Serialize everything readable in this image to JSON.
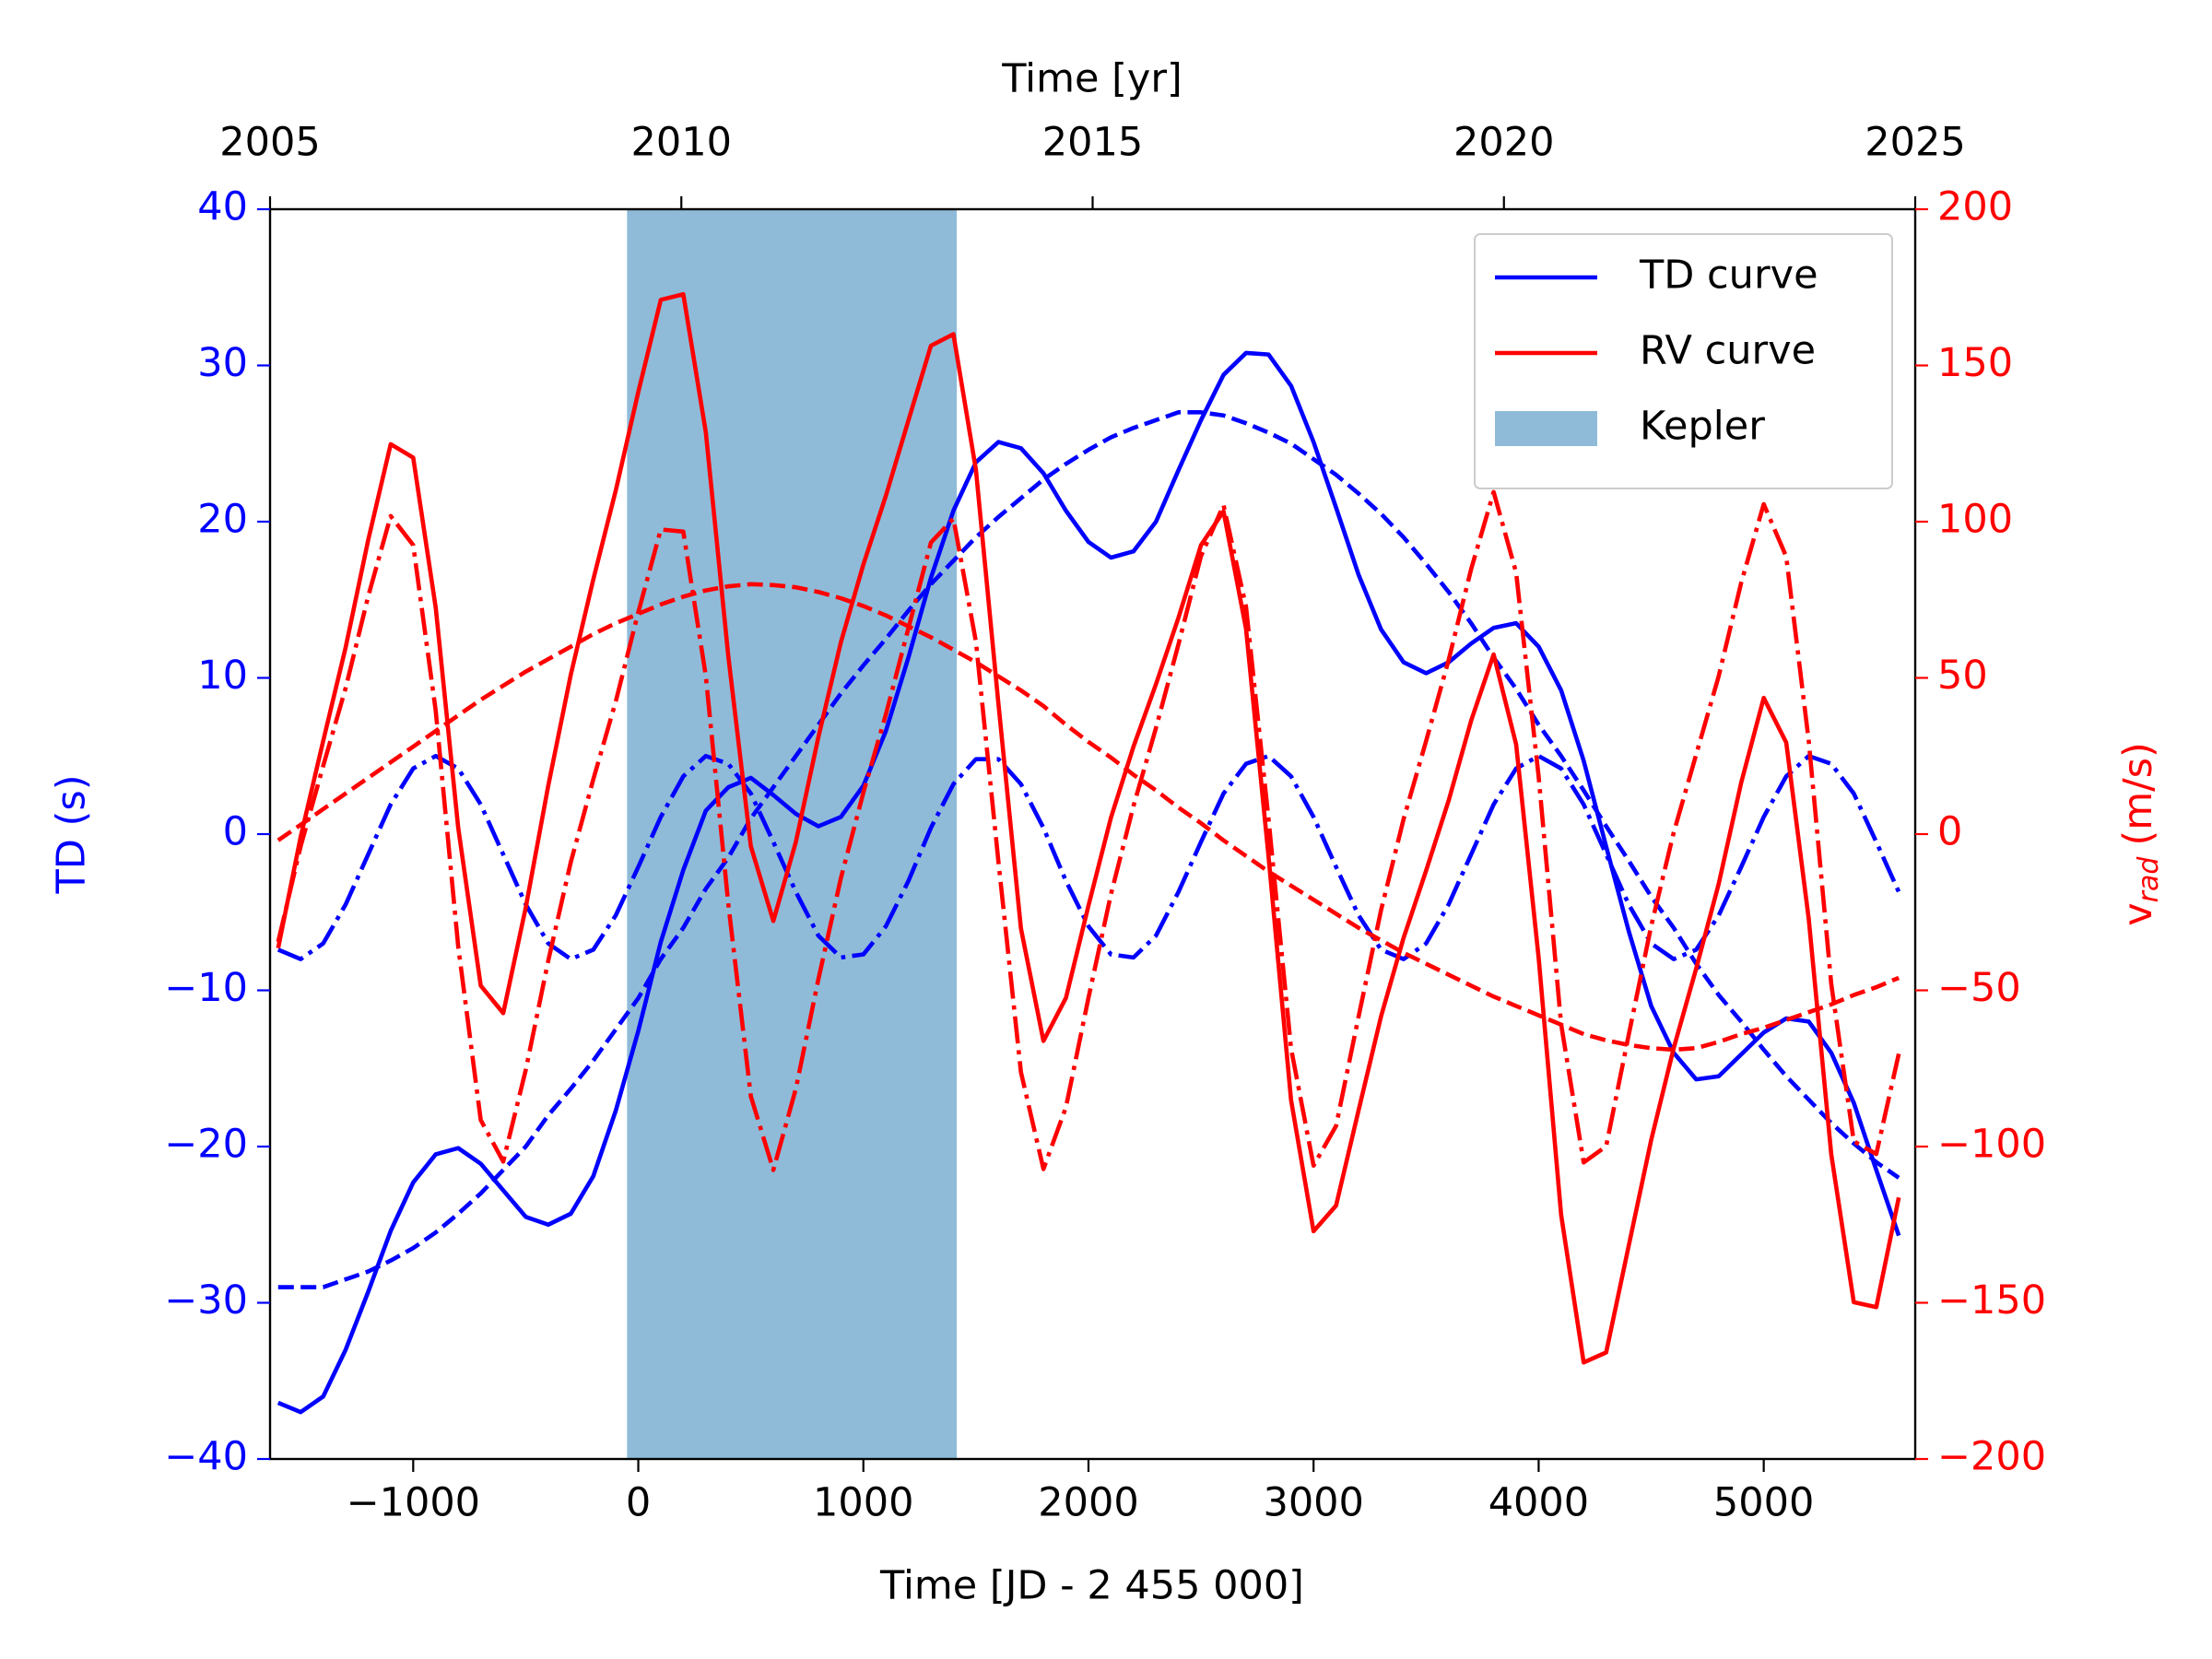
{
  "chart_data": {
    "type": "line",
    "xlabel": "Time [JD - 2 455 000]",
    "x2label": "Time [yr]",
    "ylabel": "TD (s)",
    "y2label": {
      "symbol": "v",
      "subscript": "rad",
      "unit": "(m/s)"
    },
    "xlim": [
      -1636,
      5673
    ],
    "xticks": [
      {
        "value": -1000,
        "label": "−1000"
      },
      0,
      1000,
      2000,
      3000,
      4000,
      5000
    ],
    "x2lim": [
      2005,
      2025
    ],
    "x2ticks": [
      2005,
      2010,
      2015,
      2020,
      2025
    ],
    "ylim": [
      -40,
      40
    ],
    "yticks": [
      {
        "value": -40,
        "label": "−40"
      },
      {
        "value": -30,
        "label": "−30"
      },
      {
        "value": -20,
        "label": "−20"
      },
      {
        "value": -10,
        "label": "−10"
      },
      0,
      10,
      20,
      30,
      40
    ],
    "y2lim": [
      -200,
      200
    ],
    "y2ticks": [
      {
        "value": -200,
        "label": "−200"
      },
      {
        "value": -150,
        "label": "−150"
      },
      {
        "value": -100,
        "label": "−100"
      },
      {
        "value": -50,
        "label": "−50"
      },
      0,
      50,
      100,
      150,
      200
    ],
    "ycolor": "#0000ff",
    "y2color": "#ff0000",
    "legend": "upper right",
    "span": {
      "name": "Kepler",
      "xmin": -50,
      "xmax": 1415,
      "color": "#1f77b4",
      "alpha": 0.5
    },
    "x": [
      -1600,
      -1500,
      -1400,
      -1300,
      -1200,
      -1100,
      -1000,
      -900,
      -800,
      -700,
      -600,
      -500,
      -400,
      -300,
      -200,
      -100,
      0,
      100,
      200,
      300,
      400,
      500,
      600,
      700,
      800,
      900,
      1000,
      1100,
      1200,
      1300,
      1400,
      1500,
      1600,
      1700,
      1800,
      1900,
      2000,
      2100,
      2200,
      2300,
      2400,
      2500,
      2600,
      2700,
      2800,
      2900,
      3000,
      3100,
      3200,
      3300,
      3400,
      3500,
      3600,
      3700,
      3800,
      3900,
      4000,
      4100,
      4200,
      4300,
      4400,
      4500,
      4600,
      4700,
      4800,
      4900,
      5000,
      5100,
      5200,
      5300,
      5400,
      5500,
      5600
    ],
    "series": [
      {
        "name": "TD curve",
        "color": "#0000ff",
        "linestyle": "solid",
        "axis": "y",
        "values": [
          -36.4,
          -37.0,
          -36.0,
          -33.0,
          -29.3,
          -25.4,
          -22.3,
          -20.5,
          -20.1,
          -21.1,
          -22.8,
          -24.5,
          -25.0,
          -24.3,
          -21.9,
          -17.7,
          -12.6,
          -6.9,
          -2.3,
          1.5,
          3.0,
          3.6,
          2.5,
          1.3,
          0.5,
          1.1,
          3.1,
          6.6,
          11.3,
          16.4,
          20.7,
          23.8,
          25.1,
          24.7,
          23.1,
          20.7,
          18.7,
          17.7,
          18.1,
          20.0,
          23.3,
          26.5,
          29.4,
          30.8,
          30.7,
          28.7,
          25.1,
          20.9,
          16.6,
          13.1,
          11.0,
          10.3,
          11.0,
          12.2,
          13.2,
          13.5,
          12.0,
          9.2,
          4.7,
          -0.8,
          -6.2,
          -11.0,
          -14.0,
          -15.7,
          -15.5,
          -14.1,
          -12.7,
          -11.8,
          -12.0,
          -14.0,
          -17.2,
          -21.5,
          -25.7
        ]
      },
      {
        "color": "#0000ff",
        "linestyle": "dashed",
        "axis": "y",
        "values": [
          -29,
          -29,
          -29,
          -28.5,
          -28,
          -27.3,
          -26.5,
          -25.5,
          -24.3,
          -23,
          -21.5,
          -20,
          -18,
          -16.3,
          -14.5,
          -12.5,
          -10.5,
          -8,
          -6,
          -3.5,
          -1.5,
          1,
          3,
          5,
          7,
          9,
          10.8,
          12.5,
          14.3,
          16,
          17.5,
          19,
          20.3,
          21.5,
          22.7,
          23.7,
          24.6,
          25.4,
          26,
          26.5,
          27,
          27,
          26.8,
          26.3,
          25.7,
          25,
          24,
          23,
          21.8,
          20.5,
          19,
          17.3,
          15.5,
          13.5,
          11.3,
          9.3,
          7,
          5,
          2.8,
          0.5,
          -1.7,
          -4,
          -6,
          -8.3,
          -10.3,
          -12,
          -13.8,
          -15.5,
          -17,
          -18.5,
          -19.8,
          -21,
          -22
        ]
      },
      {
        "color": "#0000ff",
        "linestyle": "dashdot",
        "axis": "y",
        "values": [
          -7.4,
          -8.0,
          -7.0,
          -4.5,
          -1.3,
          1.9,
          4.2,
          5.0,
          4.2,
          1.9,
          -1.3,
          -4.5,
          -7.0,
          -8.0,
          -7.4,
          -5.2,
          -2.1,
          1.1,
          3.7,
          5.0,
          4.5,
          2.6,
          -0.5,
          -3.7,
          -6.5,
          -7.9,
          -7.7,
          -5.9,
          -3.0,
          0.4,
          3.2,
          4.8,
          4.8,
          3.2,
          0.4,
          -3.0,
          -5.9,
          -7.7,
          -7.9,
          -6.5,
          -3.7,
          -0.5,
          2.6,
          4.5,
          5.0,
          3.7,
          1.1,
          -2.1,
          -5.2,
          -7.4,
          -8.0,
          -7.0,
          -4.5,
          -1.3,
          1.9,
          4.2,
          5.0,
          4.2,
          1.9,
          -1.3,
          -4.5,
          -7.0,
          -8.0,
          -7.4,
          -5.2,
          -2.1,
          1.1,
          3.7,
          5.0,
          4.5,
          2.6,
          -0.5,
          -3.7
        ]
      },
      {
        "name": "RV curve",
        "color": "#ff0000",
        "linestyle": "solid",
        "axis": "y2",
        "values": [
          -36.5,
          -0.9,
          29.8,
          59.8,
          94.1,
          124.8,
          120.5,
          72.5,
          2,
          -48.5,
          -57.3,
          -23.5,
          15.5,
          51,
          81.5,
          110,
          141.5,
          171,
          172.8,
          128.6,
          56.9,
          -3.9,
          -27.8,
          -2.5,
          31,
          61.4,
          86.3,
          108.3,
          132.4,
          156.3,
          160,
          116.6,
          41.7,
          -30.2,
          -66.2,
          -52.4,
          -22.9,
          5.3,
          28,
          48,
          69.3,
          92.5,
          103.3,
          65.7,
          -7.2,
          -85.1,
          -127.1,
          -118.9,
          -88.4,
          -58.3,
          -33.2,
          -11.7,
          10.7,
          36.3,
          57.5,
          28.7,
          -39.6,
          -121.9,
          -169.1,
          -165.9,
          -131.8,
          -97.9,
          -68.5,
          -43,
          -15.9,
          16.5,
          43.6,
          29.3,
          -27.2,
          -102.5,
          -149.8,
          -151.4,
          -116.3
        ]
      },
      {
        "color": "#ff0000",
        "linestyle": "dashed",
        "axis": "y2",
        "values": [
          -2,
          3,
          8,
          13,
          18,
          23,
          28,
          33,
          38,
          43,
          47.5,
          52,
          56,
          60,
          64,
          67.5,
          70.5,
          73.5,
          76,
          78,
          79.3,
          80,
          79.7,
          79,
          77.5,
          75.5,
          73,
          70,
          66.5,
          63,
          59,
          55,
          50.5,
          46,
          41,
          35,
          29.5,
          24.5,
          19,
          14,
          8.5,
          3.5,
          -2,
          -7,
          -12,
          -16.5,
          -21,
          -25.5,
          -30,
          -34,
          -38,
          -41.5,
          -45,
          -48.5,
          -52,
          -55,
          -58,
          -61,
          -64,
          -66,
          -67.5,
          -68.5,
          -69,
          -68.5,
          -66.5,
          -64,
          -62,
          -59.5,
          -57,
          -54.5,
          -51.5,
          -49,
          -46
        ]
      },
      {
        "color": "#ff0000",
        "linestyle": "dashdot",
        "axis": "y2",
        "values": [
          -34.5,
          -3.9,
          21.8,
          46.8,
          76.1,
          101.8,
          92.5,
          39.5,
          -36,
          -91.5,
          -104.8,
          -75.5,
          -40.5,
          -9,
          17.5,
          42.5,
          71,
          97.5,
          96.8,
          50.6,
          -22.4,
          -83.9,
          -107.5,
          -81.5,
          -46.5,
          -14.1,
          13.3,
          38.3,
          65.9,
          93.3,
          101,
          61.6,
          -8.8,
          -76.2,
          -107.2,
          -87.4,
          -52.4,
          -19.2,
          9,
          34,
          60.8,
          89,
          105.3,
          72.7,
          4.8,
          -68.6,
          -106.1,
          -93.4,
          -58.4,
          -24.3,
          4.8,
          29.8,
          55.7,
          84.8,
          109.5,
          83.7,
          18.4,
          -60.9,
          -105.1,
          -99.9,
          -64.3,
          -29.4,
          0.5,
          25.5,
          50.6,
          80.5,
          105.6,
          88.8,
          29.8,
          -48,
          -98.3,
          -102.4,
          -70.3
        ]
      }
    ]
  }
}
